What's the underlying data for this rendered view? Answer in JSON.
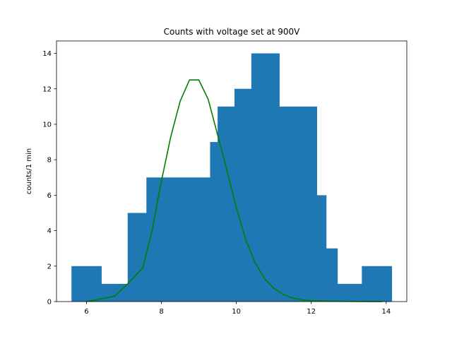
{
  "chart_data": {
    "type": "bar",
    "title": "Counts with voltage set at 900V",
    "xlabel": "",
    "ylabel": "counts/1 min",
    "xlim": [
      5.2,
      14.55
    ],
    "ylim": [
      0,
      14.7
    ],
    "xticks": [
      6,
      8,
      10,
      12,
      14
    ],
    "yticks": [
      0,
      2,
      4,
      6,
      8,
      10,
      12,
      14
    ],
    "grid": false,
    "legend": "none",
    "colors": {
      "bars": "#1f77b4",
      "curve": "#008000"
    },
    "histogram": {
      "bin_edges": [
        5.6,
        6.4,
        7.1,
        7.6,
        8.6,
        9.3,
        9.5,
        9.95,
        10.4,
        11.15,
        12.15,
        12.4,
        12.7,
        13.35,
        14.15
      ],
      "counts": [
        2,
        1,
        5,
        7,
        7,
        9,
        11,
        12,
        14,
        11,
        6,
        3,
        1,
        2
      ]
    },
    "series": [
      {
        "type": "line",
        "x": [
          6.0,
          6.75,
          7.1,
          7.5,
          7.75,
          8.0,
          8.25,
          8.5,
          8.75,
          9.0,
          9.25,
          9.5,
          9.75,
          10.0,
          10.25,
          10.5,
          10.75,
          11.0,
          11.25,
          11.5,
          11.75,
          12.0,
          12.5,
          13.0,
          13.9
        ],
        "y": [
          0,
          0.3,
          1.0,
          1.9,
          4.0,
          6.8,
          9.3,
          11.3,
          12.5,
          12.5,
          11.4,
          9.4,
          7.4,
          5.3,
          3.5,
          2.2,
          1.3,
          0.75,
          0.4,
          0.2,
          0.1,
          0.05,
          0.02,
          0.01,
          0
        ]
      }
    ]
  }
}
